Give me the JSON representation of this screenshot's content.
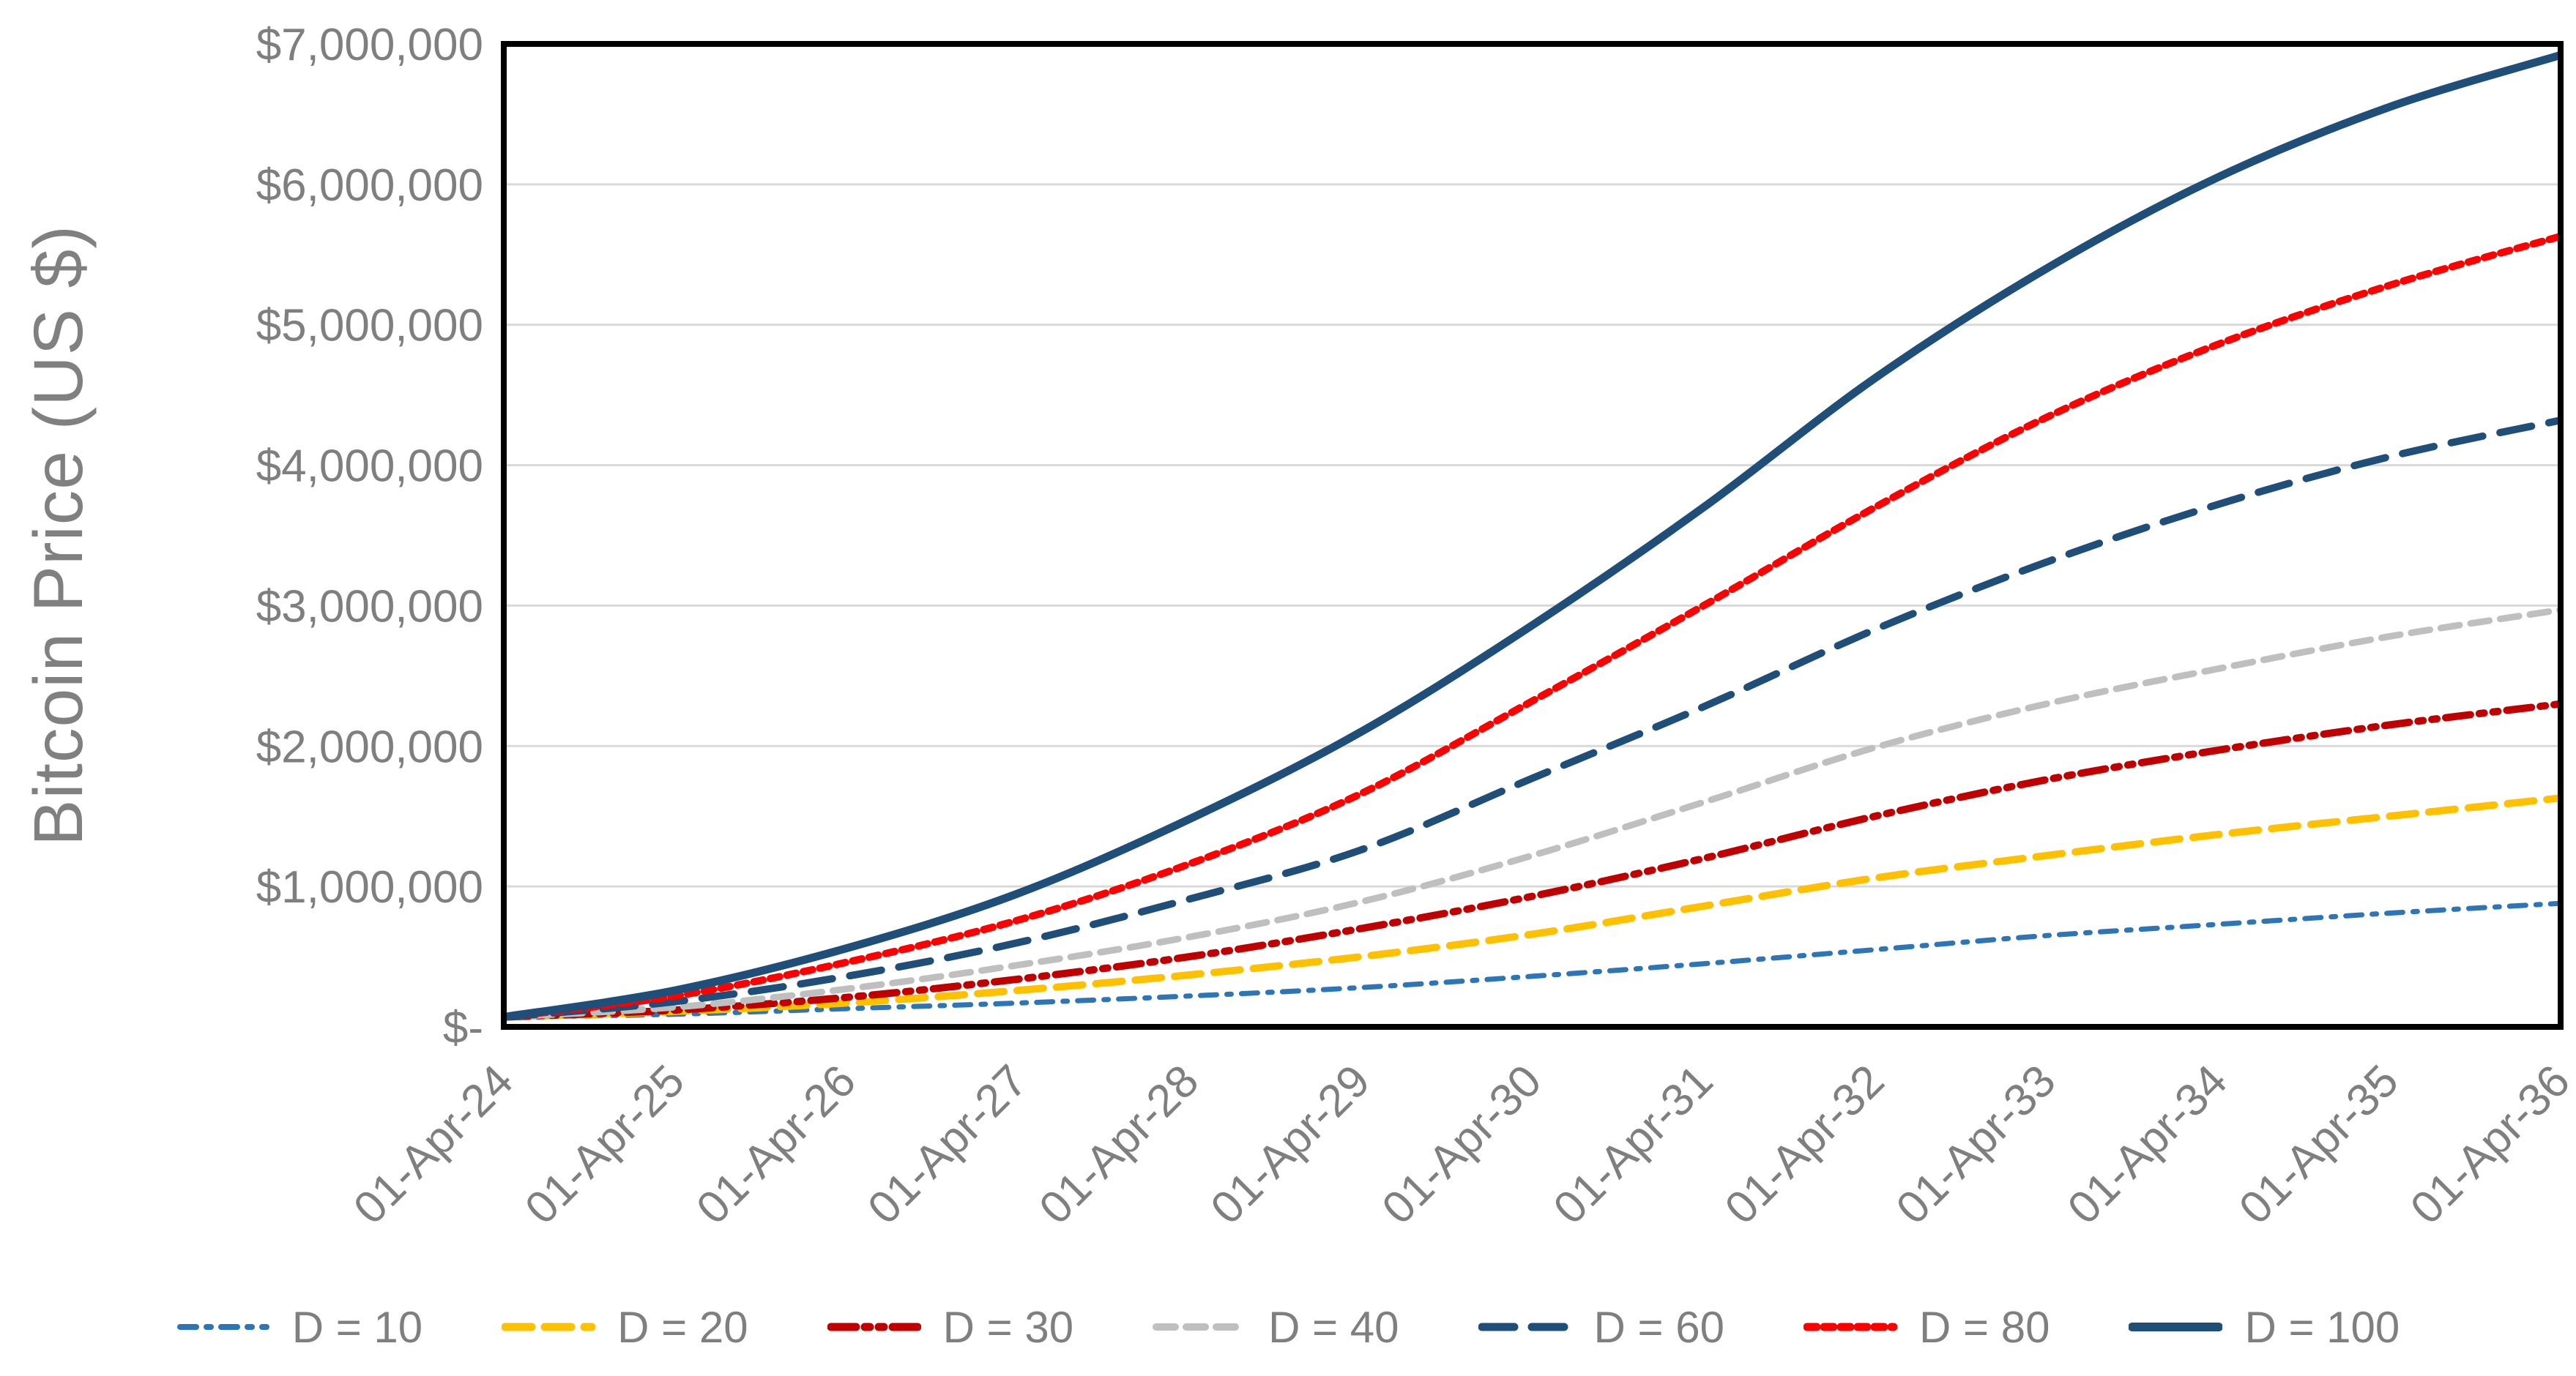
{
  "chart_data": {
    "type": "line",
    "title": "",
    "ylabel": "Bitcoin Price (US $)",
    "xlabel": "",
    "x_tick_labels": [
      "01-Apr-24",
      "01-Apr-25",
      "01-Apr-26",
      "01-Apr-27",
      "01-Apr-28",
      "01-Apr-29",
      "01-Apr-30",
      "01-Apr-31",
      "01-Apr-32",
      "01-Apr-33",
      "01-Apr-34",
      "01-Apr-35",
      "01-Apr-36"
    ],
    "y_tick_labels": [
      "$-",
      "$1,000,000",
      "$2,000,000",
      "$3,000,000",
      "$4,000,000",
      "$5,000,000",
      "$6,000,000",
      "$7,000,000"
    ],
    "ylim": [
      0,
      7000000
    ],
    "y_grid_step": 1000000,
    "grid": true,
    "legend_position": "bottom",
    "axis_text_color": "#7F7F7F",
    "grid_color": "#D9D9D9",
    "plot_border_color": "#000000",
    "series": [
      {
        "name": "D = 10",
        "color": "#2E75B6",
        "dash": "22 14 6 14",
        "width": 7,
        "values": [
          70000,
          90000,
          130000,
          170000,
          220000,
          280000,
          360000,
          450000,
          550000,
          650000,
          730000,
          810000,
          880000
        ]
      },
      {
        "name": "D = 20",
        "color": "#FFC000",
        "dash": "36 18",
        "width": 10,
        "values": [
          70000,
          110000,
          170000,
          260000,
          370000,
          500000,
          660000,
          860000,
          1060000,
          1220000,
          1370000,
          1500000,
          1630000
        ]
      },
      {
        "name": "D = 30",
        "color": "#C00000",
        "dash": "34 12 7 12 7 12",
        "width": 10,
        "values": [
          70000,
          120000,
          210000,
          340000,
          500000,
          700000,
          930000,
          1200000,
          1500000,
          1760000,
          1970000,
          2150000,
          2300000
        ]
      },
      {
        "name": "D = 40",
        "color": "#BFBFBF",
        "dash": "26 15",
        "width": 9,
        "values": [
          70000,
          140000,
          270000,
          440000,
          640000,
          890000,
          1220000,
          1600000,
          1990000,
          2300000,
          2550000,
          2780000,
          2970000
        ]
      },
      {
        "name": "D = 60",
        "color": "#1F4E79",
        "dash": "44 24",
        "width": 10,
        "values": [
          70000,
          180000,
          360000,
          600000,
          910000,
          1260000,
          1770000,
          2280000,
          2830000,
          3310000,
          3720000,
          4060000,
          4320000
        ]
      },
      {
        "name": "D = 80",
        "color": "#FF0000",
        "dash": "13 10",
        "width": 10,
        "values": [
          70000,
          220000,
          460000,
          760000,
          1160000,
          1660000,
          2320000,
          3000000,
          3700000,
          4340000,
          4860000,
          5280000,
          5630000
        ]
      },
      {
        "name": "D = 100",
        "color": "#1F4E79",
        "dash": "",
        "width": 11,
        "values": [
          70000,
          260000,
          560000,
          950000,
          1480000,
          2100000,
          2860000,
          3700000,
          4620000,
          5400000,
          6050000,
          6550000,
          6920000
        ]
      }
    ]
  }
}
